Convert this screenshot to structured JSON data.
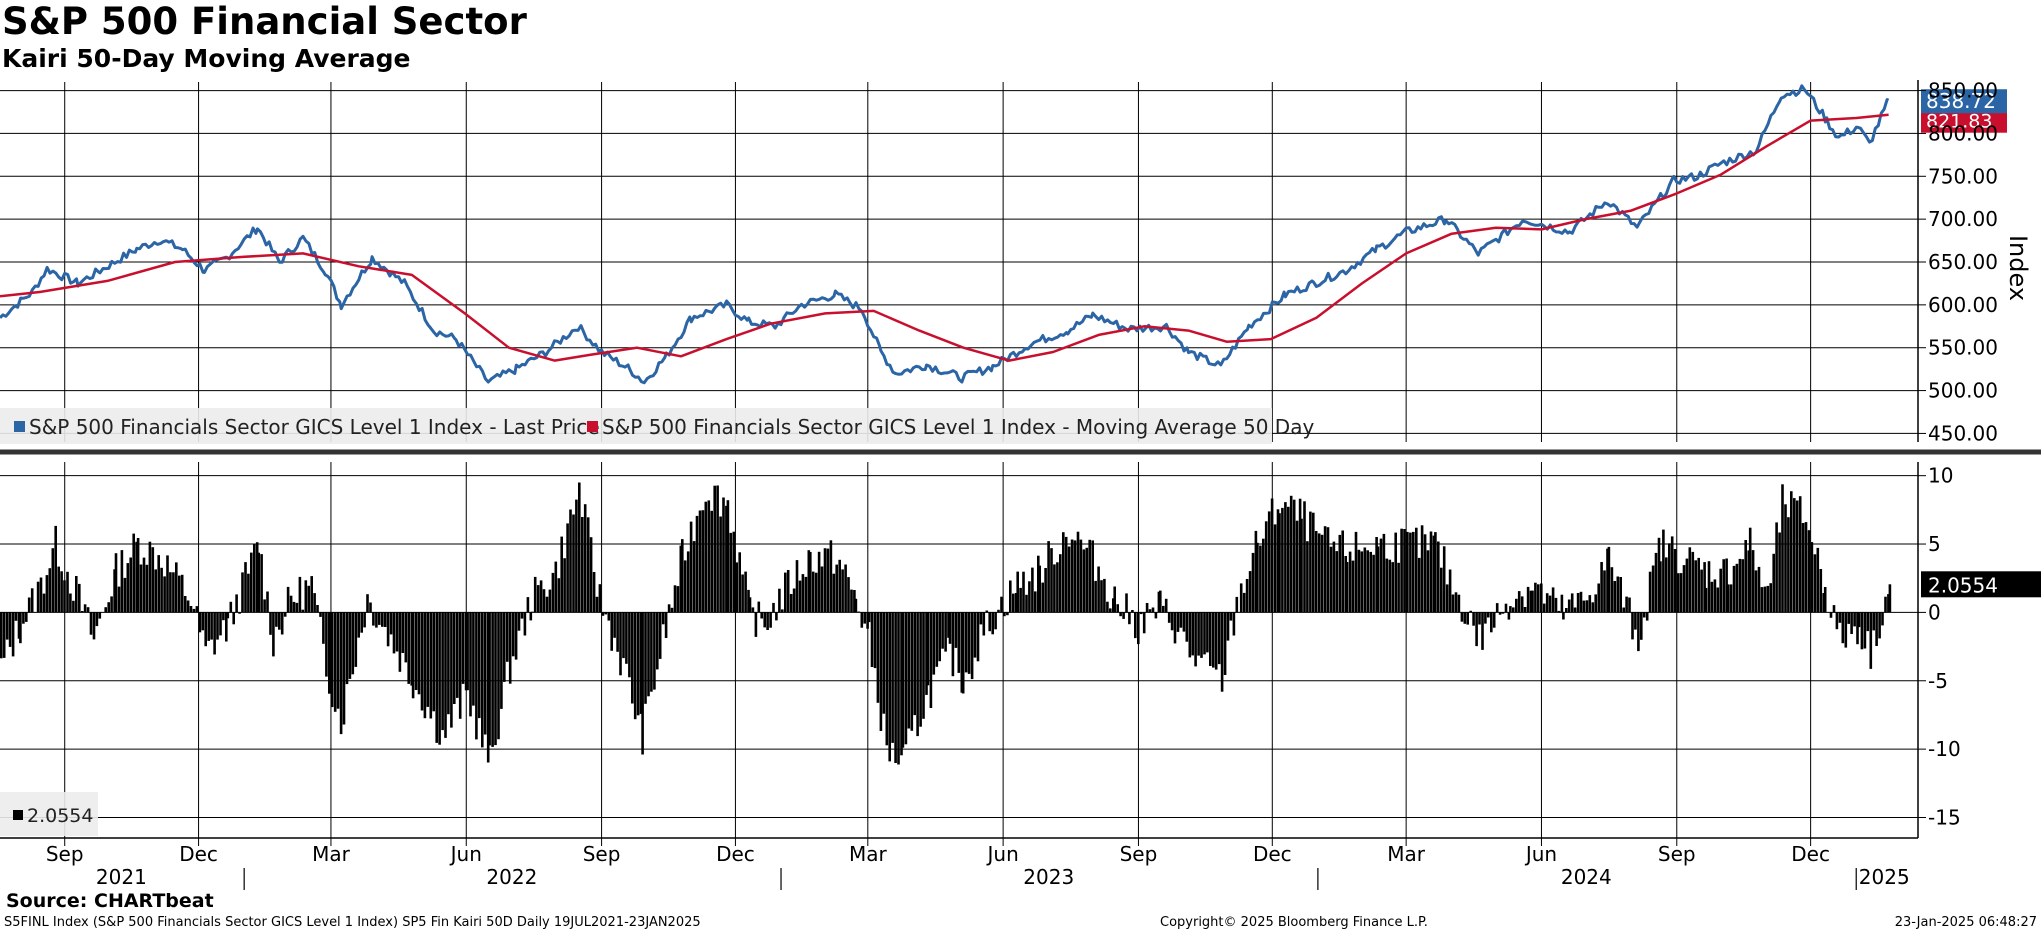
{
  "header": {
    "title": "S&P 500 Financial Sector",
    "subtitle": "Kairi 50-Day Moving Average"
  },
  "footer": {
    "source": "Source: CHARTbeat",
    "left": "S5FINL Index (S&P 500 Financials Sector GICS Level 1 Index) SP5 Fin Kairi 50D  Daily 19JUL2021-23JAN2025",
    "center": "Copyright© 2025 Bloomberg Finance L.P.",
    "right": "23-Jan-2025 06:48:27"
  },
  "colors": {
    "price": "#2b65a5",
    "ma": "#c8102e",
    "bars": "#000000",
    "grid": "#000000"
  },
  "chart_data": [
    {
      "type": "line",
      "title": "S&P 500 Financials Sector GICS Level 1 Index",
      "ylabel": "Index",
      "ylim": [
        440,
        860
      ],
      "yticks": [
        450,
        500,
        550,
        600,
        650,
        700,
        750,
        800,
        850
      ],
      "ytick_labels": [
        "450.00",
        "500.00",
        "550.00",
        "600.00",
        "650.00",
        "700.00",
        "750.00",
        "800.00",
        "850.00"
      ],
      "x_start": "2021-07-19",
      "x_end": "2025-01-23",
      "legend": [
        "S&P 500 Financials Sector GICS Level 1 Index - Last Price",
        "S&P 500 Financials Sector GICS Level 1 Index - Moving Average 50 Day"
      ],
      "legend_position": "bottom-left",
      "last_labels": {
        "price": "838.72",
        "ma": "821.83"
      },
      "series": [
        {
          "name": "Last Price",
          "points": [
            [
              "2021-07-19",
              585
            ],
            [
              "2021-08-10",
              615
            ],
            [
              "2021-08-20",
              642
            ],
            [
              "2021-09-10",
              625
            ],
            [
              "2021-09-25",
              640
            ],
            [
              "2021-10-20",
              665
            ],
            [
              "2021-11-05",
              676
            ],
            [
              "2021-11-20",
              665
            ],
            [
              "2021-12-05",
              640
            ],
            [
              "2021-12-20",
              655
            ],
            [
              "2022-01-10",
              690
            ],
            [
              "2022-01-25",
              650
            ],
            [
              "2022-02-10",
              678
            ],
            [
              "2022-02-25",
              640
            ],
            [
              "2022-03-08",
              600
            ],
            [
              "2022-03-29",
              655
            ],
            [
              "2022-04-20",
              625
            ],
            [
              "2022-05-10",
              570
            ],
            [
              "2022-05-25",
              560
            ],
            [
              "2022-06-16",
              510
            ],
            [
              "2022-07-05",
              525
            ],
            [
              "2022-07-25",
              545
            ],
            [
              "2022-08-16",
              575
            ],
            [
              "2022-09-01",
              545
            ],
            [
              "2022-09-20",
              525
            ],
            [
              "2022-09-30",
              510
            ],
            [
              "2022-10-15",
              540
            ],
            [
              "2022-11-01",
              585
            ],
            [
              "2022-11-25",
              600
            ],
            [
              "2022-12-10",
              580
            ],
            [
              "2022-12-28",
              575
            ],
            [
              "2023-01-15",
              600
            ],
            [
              "2023-02-07",
              612
            ],
            [
              "2023-02-25",
              595
            ],
            [
              "2023-03-10",
              545
            ],
            [
              "2023-03-20",
              520
            ],
            [
              "2023-04-10",
              530
            ],
            [
              "2023-05-04",
              515
            ],
            [
              "2023-05-25",
              528
            ],
            [
              "2023-06-20",
              555
            ],
            [
              "2023-07-15",
              570
            ],
            [
              "2023-08-01",
              588
            ],
            [
              "2023-08-25",
              572
            ],
            [
              "2023-09-20",
              575
            ],
            [
              "2023-10-05",
              545
            ],
            [
              "2023-10-27",
              528
            ],
            [
              "2023-11-15",
              575
            ],
            [
              "2023-12-10",
              612
            ],
            [
              "2023-12-29",
              625
            ],
            [
              "2024-01-20",
              640
            ],
            [
              "2024-02-10",
              665
            ],
            [
              "2024-03-01",
              685
            ],
            [
              "2024-03-28",
              700
            ],
            [
              "2024-04-19",
              660
            ],
            [
              "2024-05-20",
              700
            ],
            [
              "2024-06-20",
              685
            ],
            [
              "2024-07-16",
              722
            ],
            [
              "2024-08-05",
              690
            ],
            [
              "2024-08-30",
              745
            ],
            [
              "2024-09-15",
              750
            ],
            [
              "2024-10-01",
              765
            ],
            [
              "2024-10-25",
              780
            ],
            [
              "2024-11-11",
              845
            ],
            [
              "2024-11-27",
              852
            ],
            [
              "2024-12-12",
              815
            ],
            [
              "2024-12-20",
              795
            ],
            [
              "2025-01-02",
              808
            ],
            [
              "2025-01-10",
              788
            ],
            [
              "2025-01-23",
              838.72
            ]
          ]
        },
        {
          "name": "Moving Average 50 Day",
          "points": [
            [
              "2021-07-19",
              610
            ],
            [
              "2021-08-15",
              615
            ],
            [
              "2021-09-30",
              628
            ],
            [
              "2021-11-15",
              650
            ],
            [
              "2021-12-31",
              656
            ],
            [
              "2022-02-10",
              660
            ],
            [
              "2022-03-20",
              645
            ],
            [
              "2022-04-25",
              635
            ],
            [
              "2022-05-31",
              590
            ],
            [
              "2022-06-30",
              550
            ],
            [
              "2022-07-31",
              535
            ],
            [
              "2022-08-25",
              542
            ],
            [
              "2022-09-25",
              550
            ],
            [
              "2022-10-25",
              540
            ],
            [
              "2022-11-25",
              560
            ],
            [
              "2022-12-25",
              578
            ],
            [
              "2023-01-31",
              590
            ],
            [
              "2023-03-05",
              593
            ],
            [
              "2023-04-05",
              570
            ],
            [
              "2023-05-05",
              550
            ],
            [
              "2023-06-05",
              535
            ],
            [
              "2023-07-05",
              545
            ],
            [
              "2023-08-05",
              565
            ],
            [
              "2023-09-05",
              575
            ],
            [
              "2023-10-05",
              570
            ],
            [
              "2023-10-31",
              557
            ],
            [
              "2023-11-30",
              560
            ],
            [
              "2023-12-31",
              585
            ],
            [
              "2024-01-31",
              625
            ],
            [
              "2024-03-01",
              660
            ],
            [
              "2024-04-01",
              683
            ],
            [
              "2024-05-01",
              690
            ],
            [
              "2024-06-01",
              688
            ],
            [
              "2024-07-01",
              700
            ],
            [
              "2024-08-01",
              710
            ],
            [
              "2024-09-01",
              730
            ],
            [
              "2024-10-01",
              752
            ],
            [
              "2024-11-01",
              785
            ],
            [
              "2024-12-01",
              815
            ],
            [
              "2025-01-01",
              818
            ],
            [
              "2025-01-23",
              821.83
            ]
          ]
        }
      ]
    },
    {
      "type": "bar",
      "title": "Kairi 50-Day Moving Average",
      "ylim": [
        -16.5,
        11
      ],
      "yticks": [
        -15,
        -10,
        -5,
        0,
        5,
        10
      ],
      "ytick_labels": [
        "-15",
        "-10",
        "-5",
        "0",
        "5",
        "10"
      ],
      "legend": [
        "2.0554"
      ],
      "last_value": "2.0554",
      "series": [
        {
          "name": "Kairi 50D",
          "points": [
            [
              "2021-07-19",
              -4
            ],
            [
              "2021-08-01",
              -1
            ],
            [
              "2021-08-15",
              2
            ],
            [
              "2021-08-25",
              5
            ],
            [
              "2021-09-10",
              1
            ],
            [
              "2021-09-20",
              -2
            ],
            [
              "2021-10-05",
              3
            ],
            [
              "2021-10-20",
              5
            ],
            [
              "2021-11-05",
              4
            ],
            [
              "2021-11-25",
              1
            ],
            [
              "2021-12-05",
              -3
            ],
            [
              "2021-12-20",
              -1
            ],
            [
              "2022-01-10",
              5
            ],
            [
              "2022-01-20",
              -2
            ],
            [
              "2022-02-01",
              1
            ],
            [
              "2022-02-15",
              2
            ],
            [
              "2022-02-25",
              -4
            ],
            [
              "2022-03-07",
              -8
            ],
            [
              "2022-03-25",
              1
            ],
            [
              "2022-04-10",
              -2
            ],
            [
              "2022-04-25",
              -5
            ],
            [
              "2022-05-15",
              -9
            ],
            [
              "2022-06-01",
              -6
            ],
            [
              "2022-06-16",
              -11
            ],
            [
              "2022-06-30",
              -4
            ],
            [
              "2022-07-15",
              1
            ],
            [
              "2022-07-31",
              3
            ],
            [
              "2022-08-16",
              9
            ],
            [
              "2022-08-30",
              1
            ],
            [
              "2022-09-15",
              -4
            ],
            [
              "2022-09-28",
              -9
            ],
            [
              "2022-10-10",
              -3
            ],
            [
              "2022-10-25",
              4
            ],
            [
              "2022-11-10",
              9
            ],
            [
              "2022-11-25",
              8
            ],
            [
              "2022-12-10",
              0
            ],
            [
              "2022-12-20",
              -1
            ],
            [
              "2023-01-05",
              2
            ],
            [
              "2023-01-20",
              4
            ],
            [
              "2023-02-07",
              4
            ],
            [
              "2023-02-20",
              1
            ],
            [
              "2023-03-01",
              -2
            ],
            [
              "2023-03-13",
              -10
            ],
            [
              "2023-03-24",
              -11
            ],
            [
              "2023-04-10",
              -6
            ],
            [
              "2023-04-25",
              -3
            ],
            [
              "2023-05-04",
              -5
            ],
            [
              "2023-05-20",
              -1
            ],
            [
              "2023-06-10",
              2
            ],
            [
              "2023-06-25",
              3
            ],
            [
              "2023-07-15",
              6
            ],
            [
              "2023-07-31",
              4
            ],
            [
              "2023-08-15",
              1
            ],
            [
              "2023-08-31",
              -1
            ],
            [
              "2023-09-15",
              0.5
            ],
            [
              "2023-09-25",
              -1
            ],
            [
              "2023-10-05",
              -3
            ],
            [
              "2023-10-15",
              -4
            ],
            [
              "2023-10-27",
              -5
            ],
            [
              "2023-11-07",
              1
            ],
            [
              "2023-11-20",
              5
            ],
            [
              "2023-12-05",
              8
            ],
            [
              "2023-12-20",
              7
            ],
            [
              "2024-01-05",
              5
            ],
            [
              "2024-01-20",
              4.5
            ],
            [
              "2024-02-10",
              5
            ],
            [
              "2024-03-01",
              5
            ],
            [
              "2024-03-20",
              5
            ],
            [
              "2024-04-05",
              1
            ],
            [
              "2024-04-19",
              -2
            ],
            [
              "2024-05-10",
              1
            ],
            [
              "2024-05-25",
              2
            ],
            [
              "2024-06-15",
              0
            ],
            [
              "2024-07-01",
              1
            ],
            [
              "2024-07-16",
              4
            ],
            [
              "2024-08-05",
              -2
            ],
            [
              "2024-08-20",
              5
            ],
            [
              "2024-09-05",
              4
            ],
            [
              "2024-09-20",
              3
            ],
            [
              "2024-10-05",
              3
            ],
            [
              "2024-10-20",
              5
            ],
            [
              "2024-11-01",
              1
            ],
            [
              "2024-11-11",
              8
            ],
            [
              "2024-11-27",
              7
            ],
            [
              "2024-12-10",
              2
            ],
            [
              "2024-12-20",
              -2
            ],
            [
              "2025-01-02",
              -1
            ],
            [
              "2025-01-10",
              -3
            ],
            [
              "2025-01-23",
              2.0554
            ]
          ]
        }
      ]
    }
  ],
  "x_axis": {
    "month_ticks": [
      {
        "date": "2021-09-01",
        "label": "Sep"
      },
      {
        "date": "2021-12-01",
        "label": "Dec"
      },
      {
        "date": "2022-03-01",
        "label": "Mar"
      },
      {
        "date": "2022-06-01",
        "label": "Jun"
      },
      {
        "date": "2022-09-01",
        "label": "Sep"
      },
      {
        "date": "2022-12-01",
        "label": "Dec"
      },
      {
        "date": "2023-03-01",
        "label": "Mar"
      },
      {
        "date": "2023-06-01",
        "label": "Jun"
      },
      {
        "date": "2023-09-01",
        "label": "Sep"
      },
      {
        "date": "2023-12-01",
        "label": "Dec"
      },
      {
        "date": "2024-03-01",
        "label": "Mar"
      },
      {
        "date": "2024-06-01",
        "label": "Jun"
      },
      {
        "date": "2024-09-01",
        "label": "Sep"
      },
      {
        "date": "2024-12-01",
        "label": "Dec"
      }
    ],
    "years": [
      {
        "label": "2021",
        "start": "2021-07-19",
        "end": "2021-12-31"
      },
      {
        "label": "2022",
        "start": "2022-01-01",
        "end": "2022-12-31"
      },
      {
        "label": "2023",
        "start": "2023-01-01",
        "end": "2023-12-31"
      },
      {
        "label": "2024",
        "start": "2024-01-01",
        "end": "2024-12-31"
      },
      {
        "label": "2025",
        "start": "2025-01-01",
        "end": "2025-01-23"
      }
    ]
  }
}
